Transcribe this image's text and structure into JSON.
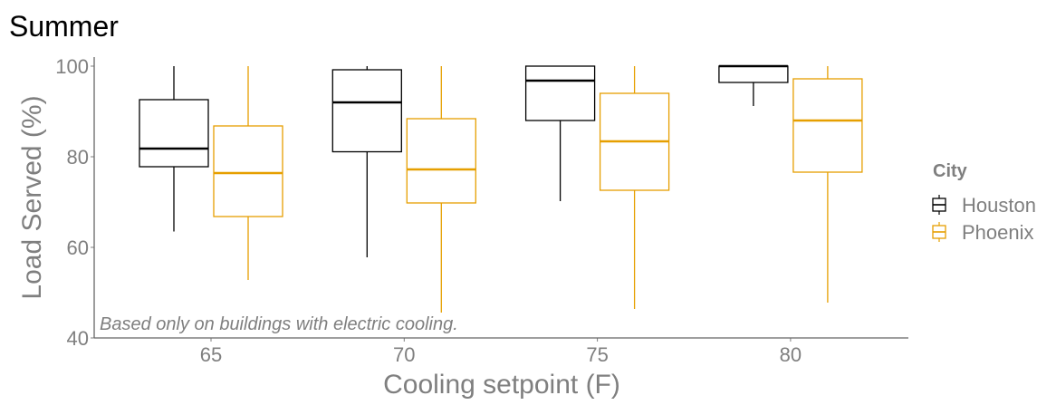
{
  "chart_data": {
    "type": "boxplot",
    "title": "Summer",
    "xlabel": "Cooling setpoint (F)",
    "ylabel": "Load Served (%)",
    "ylim": [
      40,
      102
    ],
    "yticks": [
      40,
      60,
      80,
      100
    ],
    "categories": [
      "65",
      "70",
      "75",
      "80"
    ],
    "annotation": "Based only on buildings with electric cooling.",
    "legend": {
      "title": "City",
      "placement": "right"
    },
    "series": [
      {
        "name": "Houston",
        "color": "#000000",
        "boxes": [
          {
            "min": 63.5,
            "q1": 77.8,
            "median": 81.8,
            "q3": 92.6,
            "max": 100
          },
          {
            "min": 57.8,
            "q1": 81.1,
            "median": 92.0,
            "q3": 99.2,
            "max": 100
          },
          {
            "min": 70.2,
            "q1": 88.0,
            "median": 96.8,
            "q3": 100,
            "max": 100
          },
          {
            "min": 91.2,
            "q1": 96.4,
            "median": 100,
            "q3": 100,
            "max": 100
          }
        ]
      },
      {
        "name": "Phoenix",
        "color": "#E69F00",
        "boxes": [
          {
            "min": 52.8,
            "q1": 66.8,
            "median": 76.4,
            "q3": 86.8,
            "max": 100
          },
          {
            "min": 45.6,
            "q1": 69.8,
            "median": 77.2,
            "q3": 88.4,
            "max": 100
          },
          {
            "min": 46.4,
            "q1": 72.6,
            "median": 83.4,
            "q3": 94.0,
            "max": 100
          },
          {
            "min": 47.8,
            "q1": 76.6,
            "median": 88.0,
            "q3": 97.2,
            "max": 100
          }
        ]
      }
    ],
    "grid": false
  }
}
